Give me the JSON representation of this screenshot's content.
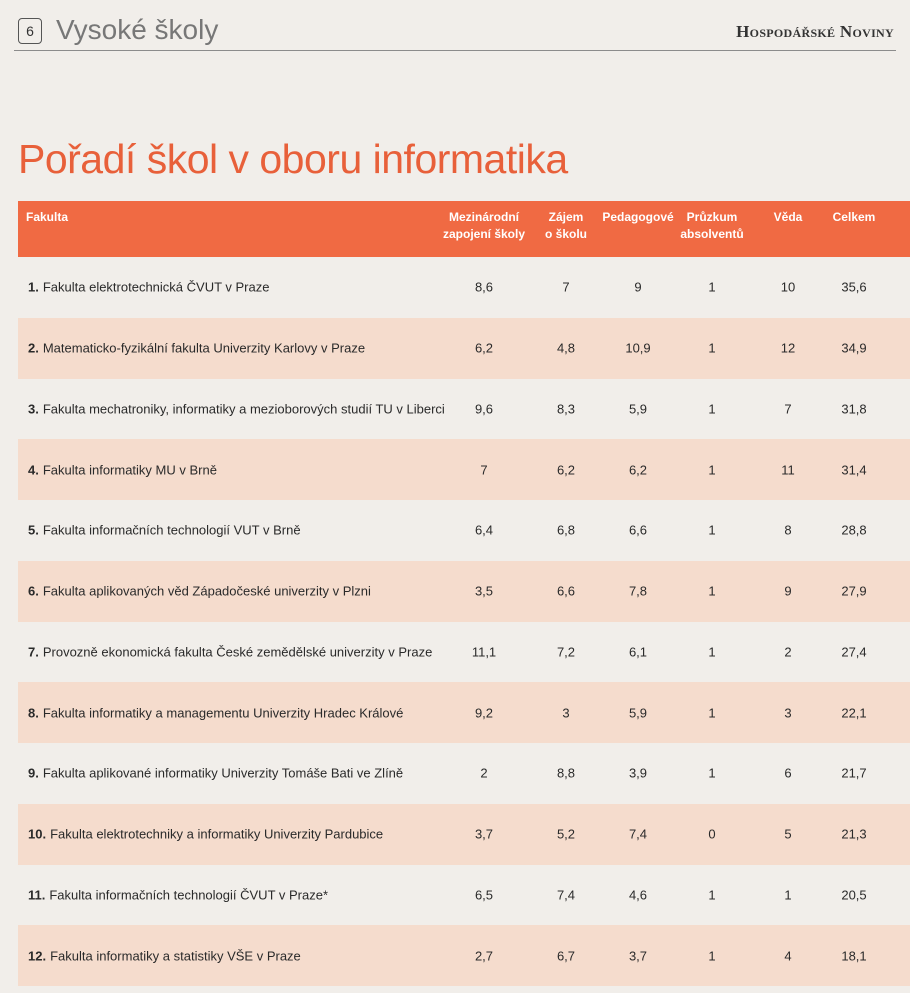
{
  "header": {
    "page_number": "6",
    "section": "Vysoké školy",
    "publication": "Hospodářské Noviny"
  },
  "title": "Pořadí škol v oboru informatika",
  "table": {
    "columns": [
      {
        "line1": "Fakulta",
        "line2": ""
      },
      {
        "line1": "Mezinárodní",
        "line2": "zapojení školy"
      },
      {
        "line1": "Zájem",
        "line2": "o školu"
      },
      {
        "line1": "Pedagogové",
        "line2": ""
      },
      {
        "line1": "Průzkum",
        "line2": "absolventů"
      },
      {
        "line1": "Věda",
        "line2": ""
      },
      {
        "line1": "Celkem",
        "line2": ""
      }
    ],
    "rows": [
      {
        "rank": "1.",
        "name": "Fakulta elektrotechnická ČVUT v Praze",
        "v": [
          "8,6",
          "7",
          "9",
          "1",
          "10",
          "35,6"
        ]
      },
      {
        "rank": "2.",
        "name": "Matematicko-fyzikální fakulta Univerzity Karlovy v Praze",
        "v": [
          "6,2",
          "4,8",
          "10,9",
          "1",
          "12",
          "34,9"
        ]
      },
      {
        "rank": "3.",
        "name": "Fakulta mechatroniky, informatiky a mezioborových studií TU v Liberci",
        "v": [
          "9,6",
          "8,3",
          "5,9",
          "1",
          "7",
          "31,8"
        ]
      },
      {
        "rank": "4.",
        "name": "Fakulta informatiky MU v Brně",
        "v": [
          "7",
          "6,2",
          "6,2",
          "1",
          "11",
          "31,4"
        ]
      },
      {
        "rank": "5.",
        "name": "Fakulta informačních technologií VUT v Brně",
        "v": [
          "6,4",
          "6,8",
          "6,6",
          "1",
          "8",
          "28,8"
        ]
      },
      {
        "rank": "6.",
        "name": "Fakulta aplikovaných věd Západočeské univerzity v Plzni",
        "v": [
          "3,5",
          "6,6",
          "7,8",
          "1",
          "9",
          "27,9"
        ]
      },
      {
        "rank": "7.",
        "name": "Provozně ekonomická fakulta České zemědělské univerzity v Praze",
        "v": [
          "11,1",
          "7,2",
          "6,1",
          "1",
          "2",
          "27,4"
        ]
      },
      {
        "rank": "8.",
        "name": "Fakulta informatiky a managementu Univerzity Hradec Králové",
        "v": [
          "9,2",
          "3",
          "5,9",
          "1",
          "3",
          "22,1"
        ]
      },
      {
        "rank": "9.",
        "name": "Fakulta aplikované informatiky Univerzity Tomáše Bati ve Zlíně",
        "v": [
          "2",
          "8,8",
          "3,9",
          "1",
          "6",
          "21,7"
        ]
      },
      {
        "rank": "10.",
        "name": "Fakulta elektrotechniky a informatiky Univerzity Pardubice",
        "v": [
          "3,7",
          "5,2",
          "7,4",
          "0",
          "5",
          "21,3"
        ]
      },
      {
        "rank": "11.",
        "name": "Fakulta informačních technologií ČVUT v Praze*",
        "v": [
          "6,5",
          "7,4",
          "4,6",
          "1",
          "1",
          "20,5"
        ]
      },
      {
        "rank": "12.",
        "name": "Fakulta informatiky a statistiky VŠE v Praze",
        "v": [
          "2,7",
          "6,7",
          "3,7",
          "1",
          "4",
          "18,1"
        ]
      }
    ]
  }
}
